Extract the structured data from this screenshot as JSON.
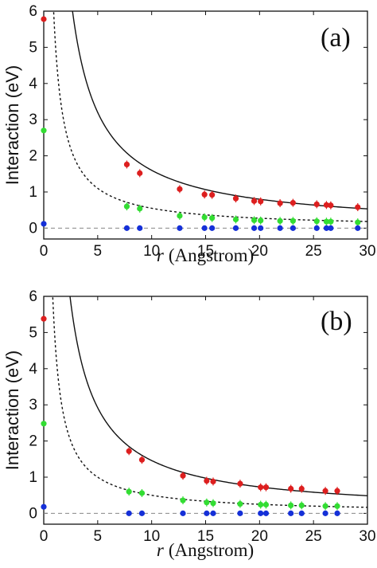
{
  "chart_data": [
    {
      "type": "scatter",
      "panel_label": "(a)",
      "ylabel": "Interaction (eV)",
      "xlabel_var": "r",
      "xlabel_unit": "(Angstrom)",
      "xlim": [
        0,
        30
      ],
      "ylim": [
        -0.3,
        6
      ],
      "xticks": [
        "0",
        "5",
        "10",
        "15",
        "20",
        "25",
        "30"
      ],
      "yticks": [
        "0",
        "1",
        "2",
        "3",
        "4",
        "5",
        "6"
      ],
      "grid": false,
      "colors": {
        "red": "#dd1f1f",
        "green": "#33dd33",
        "blue": "#1530d8",
        "curve": "#111111",
        "baseline": "#888888"
      },
      "series": [
        {
          "color": "red",
          "x": [
            0,
            7.7,
            8.9,
            12.6,
            14.9,
            15.6,
            17.8,
            19.5,
            20.1,
            21.9,
            23.1,
            25.3,
            26.2,
            26.6,
            29.1
          ],
          "y": [
            5.78,
            1.76,
            1.52,
            1.08,
            0.93,
            0.92,
            0.82,
            0.75,
            0.74,
            0.69,
            0.7,
            0.66,
            0.64,
            0.63,
            0.58
          ]
        },
        {
          "color": "green",
          "x": [
            0,
            7.7,
            8.9,
            12.6,
            14.9,
            15.6,
            17.8,
            19.5,
            20.1,
            21.9,
            23.1,
            25.3,
            26.2,
            26.6,
            29.1
          ],
          "y": [
            2.7,
            0.6,
            0.54,
            0.34,
            0.3,
            0.28,
            0.24,
            0.22,
            0.21,
            0.2,
            0.2,
            0.19,
            0.18,
            0.18,
            0.16
          ]
        },
        {
          "color": "blue",
          "x": [
            0,
            7.7,
            8.9,
            12.6,
            14.9,
            15.6,
            17.8,
            19.5,
            20.1,
            21.9,
            23.1,
            25.3,
            26.2,
            26.6,
            29.1
          ],
          "y": [
            0.12,
            0,
            0,
            0,
            0,
            0,
            0,
            0,
            0,
            0,
            0,
            0,
            0,
            0,
            0
          ]
        }
      ],
      "curves": [
        {
          "style": "solid",
          "coefficient": 16.0
        },
        {
          "style": "dashed",
          "coefficient": 5.5
        }
      ],
      "baseline": {
        "style": "dashed",
        "y": 0
      }
    },
    {
      "type": "scatter",
      "panel_label": "(b)",
      "ylabel": "Interaction (eV)",
      "xlabel_var": "r",
      "xlabel_unit": "(Angstrom)",
      "xlim": [
        0,
        30
      ],
      "ylim": [
        -0.3,
        6
      ],
      "xticks": [
        "0",
        "5",
        "10",
        "15",
        "20",
        "25",
        "30"
      ],
      "yticks": [
        "0",
        "1",
        "2",
        "3",
        "4",
        "5",
        "6"
      ],
      "grid": false,
      "colors": {
        "red": "#dd1f1f",
        "green": "#33dd33",
        "blue": "#1530d8",
        "curve": "#111111",
        "baseline": "#888888"
      },
      "series": [
        {
          "color": "red",
          "x": [
            0,
            7.9,
            9.1,
            12.9,
            15.1,
            15.7,
            18.2,
            20.1,
            20.6,
            22.9,
            23.9,
            26.1,
            27.2
          ],
          "y": [
            5.38,
            1.72,
            1.48,
            1.04,
            0.9,
            0.88,
            0.82,
            0.72,
            0.72,
            0.68,
            0.68,
            0.62,
            0.62
          ]
        },
        {
          "color": "green",
          "x": [
            0,
            7.9,
            9.1,
            12.9,
            15.1,
            15.7,
            18.2,
            20.1,
            20.6,
            22.9,
            23.9,
            26.1,
            27.2
          ],
          "y": [
            2.48,
            0.6,
            0.56,
            0.36,
            0.3,
            0.28,
            0.26,
            0.24,
            0.24,
            0.22,
            0.22,
            0.2,
            0.2
          ]
        },
        {
          "color": "blue",
          "x": [
            0,
            7.9,
            9.1,
            12.9,
            15.1,
            15.7,
            18.2,
            20.1,
            20.6,
            22.9,
            23.9,
            26.1,
            27.2
          ],
          "y": [
            0.18,
            0,
            0,
            0,
            0,
            0,
            0,
            0,
            0,
            0,
            0,
            0,
            0
          ]
        }
      ],
      "curves": [
        {
          "style": "solid",
          "coefficient": 14.6
        },
        {
          "style": "dashed",
          "coefficient": 5.0
        }
      ],
      "baseline": {
        "style": "dashed",
        "y": 0
      }
    }
  ]
}
